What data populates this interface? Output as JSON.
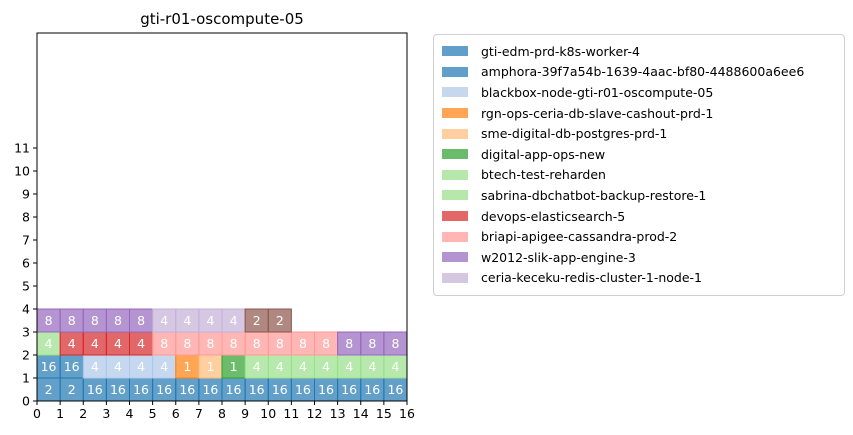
{
  "chart_data": {
    "type": "heatmap",
    "title": "gti-r01-oscompute-05",
    "xlabel": "",
    "ylabel": "",
    "xlim": [
      0,
      16
    ],
    "ylim": [
      0,
      16
    ],
    "x_ticks": [
      0,
      1,
      2,
      3,
      4,
      5,
      6,
      7,
      8,
      9,
      10,
      11,
      12,
      13,
      14,
      15,
      16
    ],
    "y_ticks": [
      0,
      1,
      2,
      3,
      4,
      5,
      6,
      7,
      8,
      9,
      10,
      11
    ],
    "grid": false,
    "legend_position": "outside-right",
    "series": [
      {
        "name": "gti-edm-prd-k8s-worker-4",
        "color": "#1f77b4"
      },
      {
        "name": "amphora-39f7a54b-1639-4aac-bf80-4488600a6ee6",
        "color": "#1f77b4"
      },
      {
        "name": "blackbox-node-gti-r01-oscompute-05",
        "color": "#aec7e8"
      },
      {
        "name": "rgn-ops-ceria-db-slave-cashout-prd-1",
        "color": "#ff7f0e"
      },
      {
        "name": "sme-digital-db-postgres-prd-1",
        "color": "#ffbb78"
      },
      {
        "name": "digital-app-ops-new",
        "color": "#2ca02c"
      },
      {
        "name": "btech-test-reharden",
        "color": "#98df8a"
      },
      {
        "name": "sabrina-dbchatbot-backup-restore-1",
        "color": "#98df8a"
      },
      {
        "name": "devops-elasticsearch-5",
        "color": "#d62728"
      },
      {
        "name": "briapi-apigee-cassandra-prod-2",
        "color": "#ff9896"
      },
      {
        "name": "w2012-slik-app-engine-3",
        "color": "#9467bd"
      },
      {
        "name": "ceria-keceku-redis-cluster-1-node-1",
        "color": "#c5b0d5"
      }
    ],
    "cells": [
      {
        "x": 0,
        "y": 0,
        "w": 2,
        "label": "2",
        "color": "#1f77b4"
      },
      {
        "x": 2,
        "y": 0,
        "w": 14,
        "label": "16",
        "color": "#1f77b4"
      },
      {
        "x": 0,
        "y": 1,
        "w": 2,
        "label": "16",
        "color": "#1f77b4"
      },
      {
        "x": 2,
        "y": 1,
        "w": 4,
        "label": "4",
        "color": "#aec7e8"
      },
      {
        "x": 6,
        "y": 1,
        "w": 1,
        "label": "1",
        "color": "#ff7f0e"
      },
      {
        "x": 7,
        "y": 1,
        "w": 1,
        "label": "1",
        "color": "#ffbb78"
      },
      {
        "x": 8,
        "y": 1,
        "w": 1,
        "label": "1",
        "color": "#2ca02c"
      },
      {
        "x": 9,
        "y": 1,
        "w": 7,
        "label": "4",
        "color": "#98df8a"
      },
      {
        "x": 0,
        "y": 2,
        "w": 1,
        "label": "4",
        "color": "#98df8a"
      },
      {
        "x": 1,
        "y": 2,
        "w": 4,
        "label": "4",
        "color": "#d62728"
      },
      {
        "x": 5,
        "y": 2,
        "w": 8,
        "label": "8",
        "color": "#ff9896"
      },
      {
        "x": 13,
        "y": 2,
        "w": 3,
        "label": "8",
        "color": "#9467bd"
      },
      {
        "x": 0,
        "y": 3,
        "w": 5,
        "label": "8",
        "color": "#9467bd"
      },
      {
        "x": 5,
        "y": 3,
        "w": 4,
        "label": "4",
        "color": "#c5b0d5"
      },
      {
        "x": 9,
        "y": 3,
        "w": 2,
        "label": "2",
        "color": "#8c564b"
      }
    ]
  }
}
